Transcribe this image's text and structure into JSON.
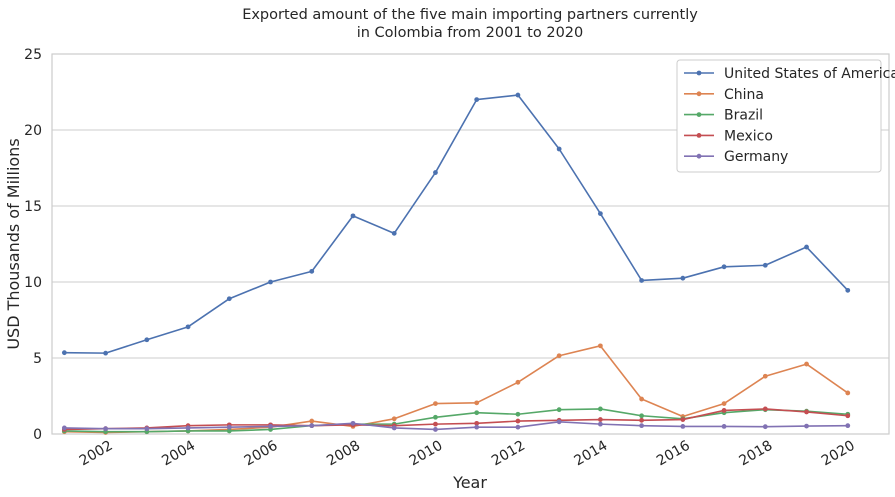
{
  "chart_data": {
    "type": "line",
    "title": [
      "Exported amount of the five main importing partners currently",
      "in Colombia from 2001 to 2020"
    ],
    "xlabel": "Year",
    "ylabel": "USD Thousands of Millions",
    "x": [
      2001,
      2002,
      2003,
      2004,
      2005,
      2006,
      2007,
      2008,
      2009,
      2010,
      2011,
      2012,
      2013,
      2014,
      2015,
      2016,
      2017,
      2018,
      2019,
      2020
    ],
    "xticks": [
      "2002",
      "2004",
      "2006",
      "2008",
      "2010",
      "2012",
      "2014",
      "2016",
      "2018",
      "2020"
    ],
    "yticks": [
      "0",
      "5",
      "10",
      "15",
      "20",
      "25"
    ],
    "xlim": [
      2000.7,
      2021.0
    ],
    "ylim": [
      0,
      25
    ],
    "grid": "horizontal",
    "legend_position": "top-right",
    "series": [
      {
        "name": "United States of America",
        "color": "#4c72b0",
        "values": [
          5.35,
          5.32,
          6.2,
          7.05,
          8.9,
          10.0,
          10.7,
          14.35,
          13.2,
          17.2,
          22.0,
          22.3,
          18.75,
          14.5,
          10.1,
          10.25,
          11.0,
          11.1,
          12.3,
          9.45
        ]
      },
      {
        "name": "China",
        "color": "#dd8452",
        "values": [
          0.15,
          0.1,
          0.15,
          0.2,
          0.3,
          0.45,
          0.85,
          0.5,
          1.0,
          2.0,
          2.05,
          3.4,
          5.15,
          5.8,
          2.3,
          1.15,
          2.0,
          3.8,
          4.6,
          2.7
        ]
      },
      {
        "name": "Brazil",
        "color": "#55a868",
        "values": [
          0.2,
          0.15,
          0.15,
          0.2,
          0.2,
          0.3,
          0.55,
          0.65,
          0.65,
          1.1,
          1.4,
          1.3,
          1.6,
          1.65,
          1.2,
          1.0,
          1.4,
          1.6,
          1.5,
          1.3
        ]
      },
      {
        "name": "Mexico",
        "color": "#c44e52",
        "values": [
          0.3,
          0.35,
          0.4,
          0.55,
          0.6,
          0.6,
          0.55,
          0.6,
          0.55,
          0.65,
          0.7,
          0.85,
          0.9,
          0.95,
          0.9,
          0.95,
          1.55,
          1.65,
          1.45,
          1.2
        ]
      },
      {
        "name": "Germany",
        "color": "#8172b3",
        "values": [
          0.4,
          0.35,
          0.35,
          0.4,
          0.45,
          0.5,
          0.55,
          0.7,
          0.4,
          0.3,
          0.45,
          0.45,
          0.8,
          0.65,
          0.55,
          0.5,
          0.5,
          0.48,
          0.52,
          0.55
        ]
      }
    ]
  }
}
